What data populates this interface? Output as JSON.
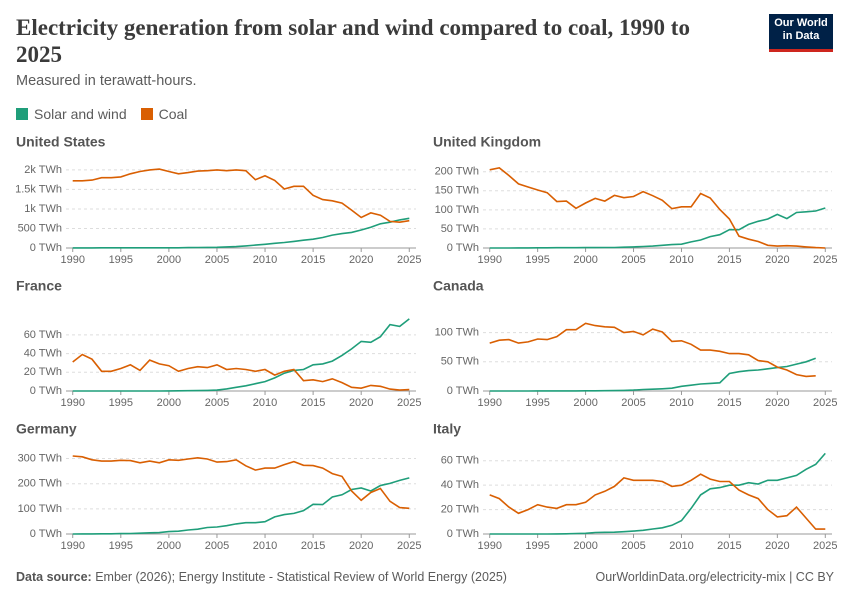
{
  "header": {
    "title": "Electricity generation from solar and wind compared to coal, 1990 to 2025",
    "subtitle": "Measured in terawatt-hours.",
    "logo": [
      "Our World",
      "in Data"
    ]
  },
  "legend": [
    {
      "name": "Solar and wind",
      "color": "#1f9e7a"
    },
    {
      "name": "Coal",
      "color": "#d95f02"
    }
  ],
  "chart_data": [
    {
      "type": "line",
      "title": "United States",
      "x": [
        1990,
        1991,
        1992,
        1993,
        1994,
        1995,
        1996,
        1997,
        1998,
        1999,
        2000,
        2001,
        2002,
        2003,
        2004,
        2005,
        2006,
        2007,
        2008,
        2009,
        2010,
        2011,
        2012,
        2013,
        2014,
        2015,
        2016,
        2017,
        2018,
        2019,
        2020,
        2021,
        2022,
        2023,
        2024,
        2025
      ],
      "series": [
        {
          "values": [
            3,
            3,
            3,
            4,
            4,
            4,
            4,
            4,
            4,
            5,
            6,
            6,
            11,
            12,
            15,
            18,
            27,
            35,
            55,
            74,
            95,
            120,
            141,
            170,
            200,
            225,
            270,
            330,
            370,
            400,
            460,
            530,
            620,
            660,
            720,
            760
          ]
        },
        {
          "values": [
            1720,
            1720,
            1740,
            1800,
            1800,
            1820,
            1900,
            1960,
            2000,
            2020,
            1960,
            1900,
            1930,
            1970,
            1980,
            2000,
            1980,
            2000,
            1980,
            1750,
            1850,
            1730,
            1510,
            1580,
            1580,
            1350,
            1240,
            1210,
            1150,
            970,
            780,
            900,
            840,
            680,
            660,
            700
          ]
        }
      ],
      "xlim": [
        1989.3,
        2025.7
      ],
      "xticks": [
        1990,
        1995,
        2000,
        2005,
        2010,
        2015,
        2020,
        2025
      ],
      "ylim": [
        0,
        2100
      ],
      "yticks": [
        {
          "value": 0,
          "label": "0 TWh"
        },
        {
          "value": 500,
          "label": "500 TWh"
        },
        {
          "value": 1000,
          "label": "1k TWh"
        },
        {
          "value": 1500,
          "label": "1.5k TWh"
        },
        {
          "value": 2000,
          "label": "2k TWh"
        }
      ]
    },
    {
      "type": "line",
      "title": "United Kingdom",
      "x": [
        1990,
        1991,
        1992,
        1993,
        1994,
        1995,
        1996,
        1997,
        1998,
        1999,
        2000,
        2001,
        2002,
        2003,
        2004,
        2005,
        2006,
        2007,
        2008,
        2009,
        2010,
        2011,
        2012,
        2013,
        2014,
        2015,
        2016,
        2017,
        2018,
        2019,
        2020,
        2021,
        2022,
        2023,
        2024,
        2025
      ],
      "series": [
        {
          "values": [
            0,
            0,
            0,
            0.3,
            0.3,
            0.4,
            0.5,
            0.7,
            0.9,
            0.9,
            1,
            1,
            1.3,
            1.3,
            2,
            3,
            4,
            5,
            7,
            9,
            10,
            16,
            21,
            30,
            35,
            48,
            48,
            62,
            70,
            76,
            88,
            77,
            93,
            95,
            97,
            105
          ]
        },
        {
          "values": [
            205,
            210,
            190,
            168,
            160,
            152,
            145,
            122,
            123,
            104,
            118,
            130,
            123,
            138,
            132,
            135,
            148,
            137,
            125,
            103,
            108,
            108,
            143,
            131,
            101,
            76,
            31,
            23,
            17,
            7,
            5,
            6,
            5,
            3,
            1,
            0
          ]
        }
      ],
      "xlim": [
        1989.3,
        2025.7
      ],
      "xticks": [
        1990,
        1995,
        2000,
        2005,
        2010,
        2015,
        2020,
        2025
      ],
      "ylim": [
        0,
        215
      ],
      "yticks": [
        {
          "value": 0,
          "label": "0 TWh"
        },
        {
          "value": 50,
          "label": "50 TWh"
        },
        {
          "value": 100,
          "label": "100 TWh"
        },
        {
          "value": 150,
          "label": "150 TWh"
        },
        {
          "value": 200,
          "label": "200 TWh"
        }
      ]
    },
    {
      "type": "line",
      "title": "France",
      "x": [
        1990,
        1991,
        1992,
        1993,
        1994,
        1995,
        1996,
        1997,
        1998,
        1999,
        2000,
        2001,
        2002,
        2003,
        2004,
        2005,
        2006,
        2007,
        2008,
        2009,
        2010,
        2011,
        2012,
        2013,
        2014,
        2015,
        2016,
        2017,
        2018,
        2019,
        2020,
        2021,
        2022,
        2023,
        2024,
        2025
      ],
      "series": [
        {
          "values": [
            0,
            0,
            0,
            0,
            0,
            0,
            0,
            0,
            0,
            0,
            0.1,
            0.2,
            0.3,
            0.4,
            0.6,
            1,
            2.2,
            4,
            5.6,
            7.8,
            10,
            14,
            19,
            22,
            23,
            28,
            29,
            32,
            38,
            45,
            53,
            52,
            58,
            71,
            69,
            77
          ]
        },
        {
          "values": [
            31,
            39,
            34,
            21,
            21,
            24,
            28,
            22,
            33,
            29,
            27,
            21,
            24,
            26,
            25,
            28,
            23,
            24,
            23,
            21,
            23,
            17,
            21,
            23,
            11,
            12,
            10,
            13,
            9,
            4,
            3,
            6,
            5,
            2,
            1,
            1.5
          ]
        }
      ],
      "xlim": [
        1989.3,
        2025.7
      ],
      "xticks": [
        1990,
        1995,
        2000,
        2005,
        2010,
        2015,
        2020,
        2025
      ],
      "ylim": [
        0,
        78
      ],
      "yticks": [
        {
          "value": 0,
          "label": "0 TWh"
        },
        {
          "value": 20,
          "label": "20 TWh"
        },
        {
          "value": 40,
          "label": "40 TWh"
        },
        {
          "value": 60,
          "label": "60 TWh"
        }
      ]
    },
    {
      "type": "line",
      "title": "Canada",
      "x": [
        1990,
        1991,
        1992,
        1993,
        1994,
        1995,
        1996,
        1997,
        1998,
        1999,
        2000,
        2001,
        2002,
        2003,
        2004,
        2005,
        2006,
        2007,
        2008,
        2009,
        2010,
        2011,
        2012,
        2013,
        2014,
        2015,
        2016,
        2017,
        2018,
        2019,
        2020,
        2021,
        2022,
        2023,
        2024,
        2025
      ],
      "series": [
        {
          "values": [
            0,
            0,
            0,
            0,
            0,
            0.1,
            0.1,
            0.1,
            0.2,
            0.2,
            0.3,
            0.4,
            0.5,
            0.7,
            1,
            1.6,
            2.5,
            3,
            3.8,
            4.8,
            8,
            10,
            12,
            13,
            14,
            30,
            33,
            35,
            36,
            38,
            40,
            42,
            46,
            50,
            56,
            null
          ]
        },
        {
          "values": [
            82,
            87,
            88,
            82,
            84,
            89,
            88,
            93,
            105,
            105,
            116,
            112,
            110,
            109,
            100,
            102,
            96,
            106,
            101,
            85,
            86,
            80,
            70,
            70,
            68,
            64,
            64,
            62,
            52,
            50,
            41,
            36,
            28,
            25,
            26,
            null
          ]
        }
      ],
      "xlim": [
        1989.3,
        2025.7
      ],
      "xticks": [
        1990,
        1995,
        2000,
        2005,
        2010,
        2015,
        2020,
        2025
      ],
      "ylim": [
        0,
        125
      ],
      "yticks": [
        {
          "value": 0,
          "label": "0 TWh"
        },
        {
          "value": 50,
          "label": "50 TWh"
        },
        {
          "value": 100,
          "label": "100 TWh"
        }
      ]
    },
    {
      "type": "line",
      "title": "Germany",
      "x": [
        1990,
        1991,
        1992,
        1993,
        1994,
        1995,
        1996,
        1997,
        1998,
        1999,
        2000,
        2001,
        2002,
        2003,
        2004,
        2005,
        2006,
        2007,
        2008,
        2009,
        2010,
        2011,
        2012,
        2013,
        2014,
        2015,
        2016,
        2017,
        2018,
        2019,
        2020,
        2021,
        2022,
        2023,
        2024,
        2025
      ],
      "series": [
        {
          "values": [
            0.1,
            0.2,
            0.3,
            0.6,
            0.9,
            1.7,
            2.1,
            3,
            4.6,
            5.5,
            9.5,
            11,
            16,
            19,
            26,
            28,
            33,
            40,
            45,
            45,
            49,
            68,
            77,
            82,
            93,
            118,
            117,
            147,
            156,
            177,
            183,
            171,
            193,
            201,
            213,
            223
          ]
        },
        {
          "values": [
            310,
            307,
            295,
            290,
            290,
            293,
            292,
            283,
            290,
            283,
            295,
            293,
            298,
            303,
            298,
            286,
            288,
            295,
            271,
            254,
            262,
            262,
            276,
            288,
            273,
            272,
            262,
            240,
            229,
            171,
            134,
            165,
            181,
            130,
            105,
            102
          ]
        }
      ],
      "xlim": [
        1989.3,
        2025.7
      ],
      "xticks": [
        1990,
        1995,
        2000,
        2005,
        2010,
        2015,
        2020,
        2025
      ],
      "ylim": [
        0,
        330
      ],
      "yticks": [
        {
          "value": 0,
          "label": "0 TWh"
        },
        {
          "value": 100,
          "label": "100 TWh"
        },
        {
          "value": 200,
          "label": "200 TWh"
        },
        {
          "value": 300,
          "label": "300 TWh"
        }
      ]
    },
    {
      "type": "line",
      "title": "Italy",
      "x": [
        1990,
        1991,
        1992,
        1993,
        1994,
        1995,
        1996,
        1997,
        1998,
        1999,
        2000,
        2001,
        2002,
        2003,
        2004,
        2005,
        2006,
        2007,
        2008,
        2009,
        2010,
        2011,
        2012,
        2013,
        2014,
        2015,
        2016,
        2017,
        2018,
        2019,
        2020,
        2021,
        2022,
        2023,
        2024,
        2025
      ],
      "series": [
        {
          "values": [
            0,
            0,
            0,
            0,
            0,
            0.01,
            0.04,
            0.1,
            0.2,
            0.4,
            0.6,
            1.2,
            1.4,
            1.5,
            1.9,
            2.4,
            3,
            4.1,
            5.1,
            7.1,
            11,
            21,
            32,
            37,
            38,
            40,
            40,
            42,
            41,
            44,
            44,
            46,
            48,
            53,
            57,
            66
          ]
        },
        {
          "values": [
            32,
            29,
            22,
            17,
            20,
            24,
            22,
            21,
            24,
            24,
            26,
            32,
            35,
            39,
            46,
            44,
            44,
            44,
            43,
            39,
            40,
            44,
            49,
            45,
            43,
            43,
            36,
            32,
            29,
            20,
            14,
            15,
            22,
            13,
            4,
            4
          ]
        }
      ],
      "xlim": [
        1989.3,
        2025.7
      ],
      "xticks": [
        1990,
        1995,
        2000,
        2005,
        2010,
        2015,
        2020,
        2025
      ],
      "ylim": [
        0,
        68
      ],
      "yticks": [
        {
          "value": 0,
          "label": "0 TWh"
        },
        {
          "value": 20,
          "label": "20 TWh"
        },
        {
          "value": 40,
          "label": "40 TWh"
        },
        {
          "value": 60,
          "label": "60 TWh"
        }
      ]
    }
  ],
  "footer": {
    "source_label": "Data source:",
    "source": "Ember (2026); Energy Institute - Statistical Review of World Energy (2025)",
    "url": "OurWorldinData.org/electricity-mix | CC BY"
  }
}
